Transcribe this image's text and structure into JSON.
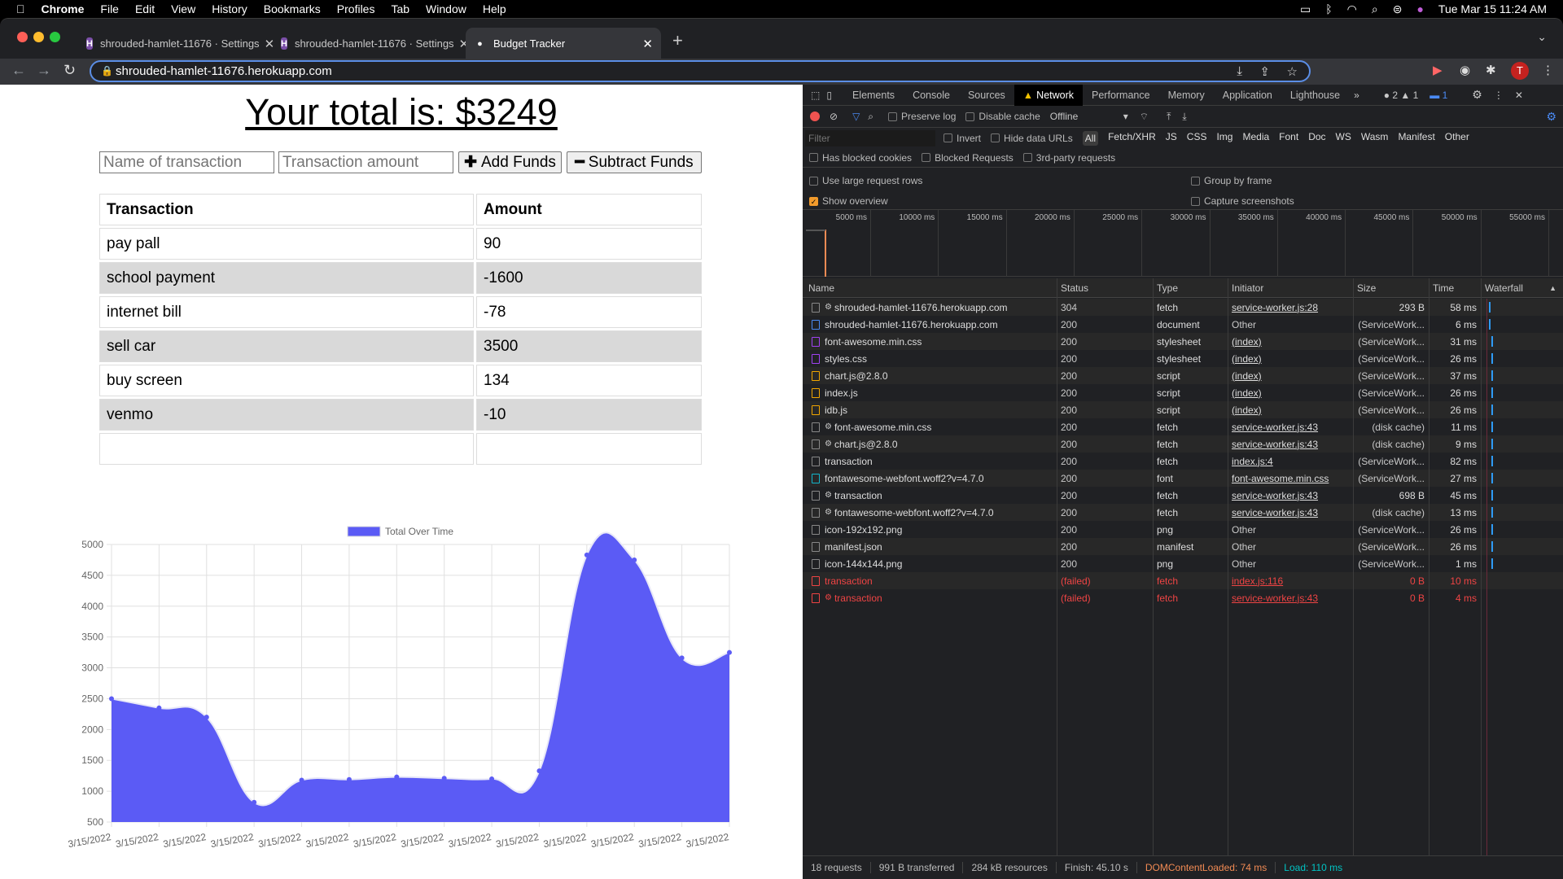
{
  "menubar": {
    "app": "Chrome",
    "items": [
      "File",
      "Edit",
      "View",
      "History",
      "Bookmarks",
      "Profiles",
      "Tab",
      "Window",
      "Help"
    ],
    "datetime": "Tue Mar 15  11:24 AM"
  },
  "browser": {
    "tabs": [
      {
        "title": "shrouded-hamlet-11676 · Settings",
        "icon": "heroku-icon"
      },
      {
        "title": "shrouded-hamlet-11676 · Settings",
        "icon": "heroku-icon"
      },
      {
        "title": "Budget Tracker",
        "icon": "money-bag-icon",
        "active": true
      }
    ],
    "url": "shrouded-hamlet-11676.herokuapp.com",
    "profile_initial": "T"
  },
  "app": {
    "total_label": "Your total is: $3249",
    "name_placeholder": "Name of transaction",
    "amount_placeholder": "Transaction amount",
    "add_label": "Add Funds",
    "subtract_label": "Subtract Funds",
    "table_headers": [
      "Transaction",
      "Amount"
    ],
    "transactions": [
      [
        "pay pall",
        "90"
      ],
      [
        "school payment",
        "-1600"
      ],
      [
        "internet bill",
        "-78"
      ],
      [
        "sell car",
        "3500"
      ],
      [
        "buy screen",
        "134"
      ],
      [
        "venmo",
        "-10"
      ],
      [
        "",
        ""
      ]
    ]
  },
  "chart_data": {
    "type": "area",
    "legend": "Total Over Time",
    "legend_placement": "top",
    "color": "#5b5bf5",
    "categories": [
      "3/15/2022",
      "3/15/2022",
      "3/15/2022",
      "3/15/2022",
      "3/15/2022",
      "3/15/2022",
      "3/15/2022",
      "3/15/2022",
      "3/15/2022",
      "3/15/2022",
      "3/15/2022",
      "3/15/2022",
      "3/15/2022",
      "3/15/2022"
    ],
    "values": [
      2500,
      2350,
      2200,
      820,
      1180,
      1190,
      1230,
      1210,
      1200,
      1330,
      4830,
      4750,
      3160,
      3249
    ],
    "ylim": [
      500,
      5000
    ],
    "yticks": [
      "5000",
      "4500",
      "4000",
      "3500",
      "3000",
      "2500",
      "2000",
      "1500",
      "1000",
      "500"
    ],
    "grid": true
  },
  "devtools": {
    "tabs": [
      "Elements",
      "Console",
      "Sources",
      "Network",
      "Performance",
      "Memory",
      "Application",
      "Lighthouse"
    ],
    "active_tab": "Network",
    "badges": {
      "errors": "2",
      "warnings": "1",
      "messages": "1"
    },
    "toolbar": {
      "preserve_log": "Preserve log",
      "disable_cache": "Disable cache",
      "throttle": "Offline"
    },
    "filter": {
      "placeholder": "Filter",
      "invert": "Invert",
      "hide_data_urls": "Hide data URLs",
      "types": [
        "All",
        "Fetch/XHR",
        "JS",
        "CSS",
        "Img",
        "Media",
        "Font",
        "Doc",
        "WS",
        "Wasm",
        "Manifest",
        "Other"
      ]
    },
    "filter2": [
      "Has blocked cookies",
      "Blocked Requests",
      "3rd-party requests"
    ],
    "settings": {
      "large_rows": "Use large request rows",
      "group_by_frame": "Group by frame",
      "show_overview": "Show overview",
      "capture_screenshots": "Capture screenshots"
    },
    "overview_ticks": [
      "5000 ms",
      "10000 ms",
      "15000 ms",
      "20000 ms",
      "25000 ms",
      "30000 ms",
      "35000 ms",
      "40000 ms",
      "45000 ms",
      "50000 ms",
      "55000 ms"
    ],
    "columns": [
      "Name",
      "Status",
      "Type",
      "Initiator",
      "Size",
      "Time",
      "Waterfall"
    ],
    "requests": [
      {
        "name": "shrouded-hamlet-11676.herokuapp.com",
        "sw": true,
        "icon": "#888",
        "status": "304",
        "type": "fetch",
        "initiator": "service-worker.js:28",
        "link": true,
        "size": "293 B",
        "time": "58 ms"
      },
      {
        "name": "shrouded-hamlet-11676.herokuapp.com",
        "icon": "#4a8af4",
        "status": "200",
        "type": "document",
        "initiator": "Other",
        "size": "(ServiceWork...",
        "time": "6 ms"
      },
      {
        "name": "font-awesome.min.css",
        "icon": "#a142f4",
        "status": "200",
        "type": "stylesheet",
        "initiator": "(index)",
        "link": true,
        "size": "(ServiceWork...",
        "time": "31 ms"
      },
      {
        "name": "styles.css",
        "icon": "#a142f4",
        "status": "200",
        "type": "stylesheet",
        "initiator": "(index)",
        "link": true,
        "size": "(ServiceWork...",
        "time": "26 ms"
      },
      {
        "name": "chart.js@2.8.0",
        "icon": "#f2a600",
        "status": "200",
        "type": "script",
        "initiator": "(index)",
        "link": true,
        "size": "(ServiceWork...",
        "time": "37 ms"
      },
      {
        "name": "index.js",
        "icon": "#f2a600",
        "status": "200",
        "type": "script",
        "initiator": "(index)",
        "link": true,
        "size": "(ServiceWork...",
        "time": "26 ms"
      },
      {
        "name": "idb.js",
        "icon": "#f2a600",
        "status": "200",
        "type": "script",
        "initiator": "(index)",
        "link": true,
        "size": "(ServiceWork...",
        "time": "26 ms"
      },
      {
        "name": "font-awesome.min.css",
        "sw": true,
        "icon": "#888",
        "status": "200",
        "type": "fetch",
        "initiator": "service-worker.js:43",
        "link": true,
        "size": "(disk cache)",
        "time": "11 ms"
      },
      {
        "name": "chart.js@2.8.0",
        "sw": true,
        "icon": "#888",
        "status": "200",
        "type": "fetch",
        "initiator": "service-worker.js:43",
        "link": true,
        "size": "(disk cache)",
        "time": "9 ms"
      },
      {
        "name": "transaction",
        "icon": "#888",
        "status": "200",
        "type": "fetch",
        "initiator": "index.js:4",
        "link": true,
        "size": "(ServiceWork...",
        "time": "82 ms"
      },
      {
        "name": "fontawesome-webfont.woff2?v=4.7.0",
        "icon": "#12b5cb",
        "status": "200",
        "type": "font",
        "initiator": "font-awesome.min.css",
        "link": true,
        "size": "(ServiceWork...",
        "time": "27 ms"
      },
      {
        "name": "transaction",
        "sw": true,
        "icon": "#888",
        "status": "200",
        "type": "fetch",
        "initiator": "service-worker.js:43",
        "link": true,
        "size": "698 B",
        "time": "45 ms"
      },
      {
        "name": "fontawesome-webfont.woff2?v=4.7.0",
        "sw": true,
        "icon": "#888",
        "status": "200",
        "type": "fetch",
        "initiator": "service-worker.js:43",
        "link": true,
        "size": "(disk cache)",
        "time": "13 ms"
      },
      {
        "name": "icon-192x192.png",
        "icon": "#888",
        "status": "200",
        "type": "png",
        "initiator": "Other",
        "size": "(ServiceWork...",
        "time": "26 ms"
      },
      {
        "name": "manifest.json",
        "icon": "#888",
        "status": "200",
        "type": "manifest",
        "initiator": "Other",
        "size": "(ServiceWork...",
        "time": "26 ms"
      },
      {
        "name": "icon-144x144.png",
        "icon": "#888",
        "status": "200",
        "type": "png",
        "initiator": "Other",
        "size": "(ServiceWork...",
        "time": "1 ms"
      },
      {
        "name": "transaction",
        "icon": "#ef4444",
        "status": "(failed)",
        "type": "fetch",
        "initiator": "index.js:116",
        "link": true,
        "size": "0 B",
        "time": "10 ms",
        "failed": true
      },
      {
        "name": "transaction",
        "sw": true,
        "icon": "#ef4444",
        "status": "(failed)",
        "type": "fetch",
        "initiator": "service-worker.js:43",
        "link": true,
        "size": "0 B",
        "time": "4 ms",
        "failed": true
      }
    ],
    "summary": {
      "requests": "18 requests",
      "transferred": "991 B transferred",
      "resources": "284 kB resources",
      "finish": "Finish: 45.10 s",
      "dcl": "DOMContentLoaded: 74 ms",
      "load": "Load: 110 ms"
    },
    "colors": {
      "dcl": "#f28b54",
      "load": "#00c4c4",
      "failed": "#ef4444"
    }
  }
}
